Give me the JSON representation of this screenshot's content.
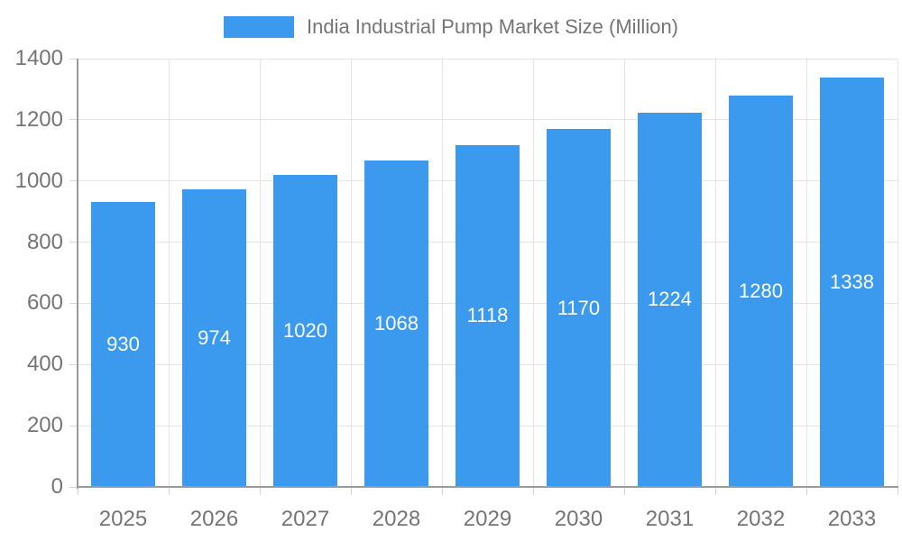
{
  "chart_data": {
    "type": "bar",
    "title": "India Industrial Pump Market Size (Million)",
    "categories": [
      "2025",
      "2026",
      "2027",
      "2028",
      "2029",
      "2030",
      "2031",
      "2032",
      "2033"
    ],
    "values": [
      930,
      974,
      1020,
      1068,
      1118,
      1170,
      1224,
      1280,
      1338
    ],
    "xlabel": "",
    "ylabel": "",
    "ylim": [
      0,
      1400
    ],
    "yticks": [
      0,
      200,
      400,
      600,
      800,
      1000,
      1200,
      1400
    ],
    "grid": true,
    "legend_position": "top",
    "value_labels": "inside-center",
    "colors": {
      "bar": "#3B99EE",
      "bar_label": "#FFFFFF",
      "axis_text": "#757575",
      "grid_line": "#E4E4E4",
      "tick_line": "#D6D6D6",
      "axis_line": "#9A9A9A",
      "background": "#FFFFFF"
    }
  }
}
